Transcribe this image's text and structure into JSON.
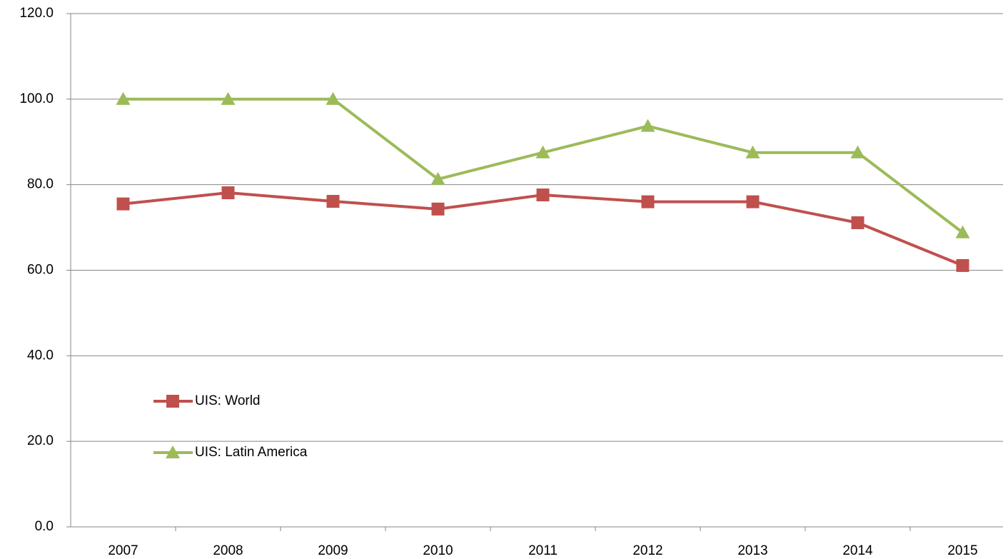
{
  "chart_data": {
    "type": "line",
    "categories": [
      "2007",
      "2008",
      "2009",
      "2010",
      "2011",
      "2012",
      "2013",
      "2014",
      "2015"
    ],
    "series": [
      {
        "name": "UIS: World",
        "color": "#c0504d",
        "marker": "square",
        "values": [
          75.5,
          78.1,
          76.1,
          74.3,
          77.6,
          76.0,
          76.0,
          71.1,
          61.1
        ]
      },
      {
        "name": "UIS: Latin America",
        "color": "#9bbb59",
        "marker": "triangle",
        "values": [
          100.0,
          100.0,
          100.0,
          81.3,
          87.5,
          93.7,
          87.5,
          87.5,
          68.8
        ]
      }
    ],
    "ylim": [
      0,
      120
    ],
    "yticks": [
      {
        "value": 0,
        "label": "0.0"
      },
      {
        "value": 20,
        "label": "20.0"
      },
      {
        "value": 40,
        "label": "40.0"
      },
      {
        "value": 60,
        "label": "60.0"
      },
      {
        "value": 80,
        "label": "80.0"
      },
      {
        "value": 100,
        "label": "100.0"
      },
      {
        "value": 120,
        "label": "120.0"
      }
    ],
    "grid": true,
    "legend": "left"
  }
}
